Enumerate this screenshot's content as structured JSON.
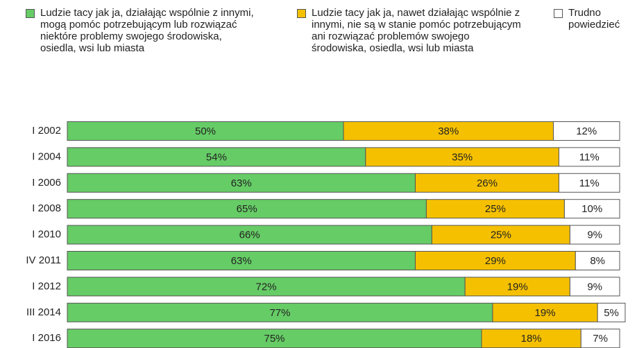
{
  "chart_data": {
    "type": "stacked_bar_horizontal",
    "categories": [
      "I 2002",
      "I 2004",
      "I 2006",
      "I 2008",
      "I 2010",
      "IV 2011",
      "I 2012",
      "III 2014",
      "I 2016"
    ],
    "xlim": [
      0,
      100
    ],
    "series": [
      {
        "name": "Ludzie tacy jak ja, działając wspólnie z innymi, mogą pomóc potrzebującym lub rozwiązać niektóre problemy swojego środowiska, osiedla, wsi lub miasta",
        "color": "#66cc66",
        "values": [
          50,
          54,
          63,
          65,
          66,
          63,
          72,
          77,
          75
        ],
        "value_labels": [
          "50%",
          "54%",
          "63%",
          "65%",
          "66%",
          "63%",
          "72%",
          "77%",
          "75%"
        ]
      },
      {
        "name": "Ludzie tacy jak ja, nawet działając wspólnie z innymi, nie są w stanie pomóc potrzebującym ani rozwiązać problemów swojego środowiska, osiedla, wsi lub miasta",
        "color": "#f5c000",
        "values": [
          38,
          35,
          26,
          25,
          25,
          29,
          19,
          19,
          18
        ],
        "value_labels": [
          "38%",
          "35%",
          "26%",
          "25%",
          "25%",
          "29%",
          "19%",
          "19%",
          "18%"
        ]
      },
      {
        "name": "Trudno powiedzieć",
        "color": "#ffffff",
        "values": [
          12,
          11,
          11,
          10,
          9,
          8,
          9,
          5,
          7
        ],
        "value_labels": [
          "12%",
          "11%",
          "11%",
          "10%",
          "9%",
          "8%",
          "9%",
          "5%",
          "7%"
        ]
      }
    ]
  }
}
